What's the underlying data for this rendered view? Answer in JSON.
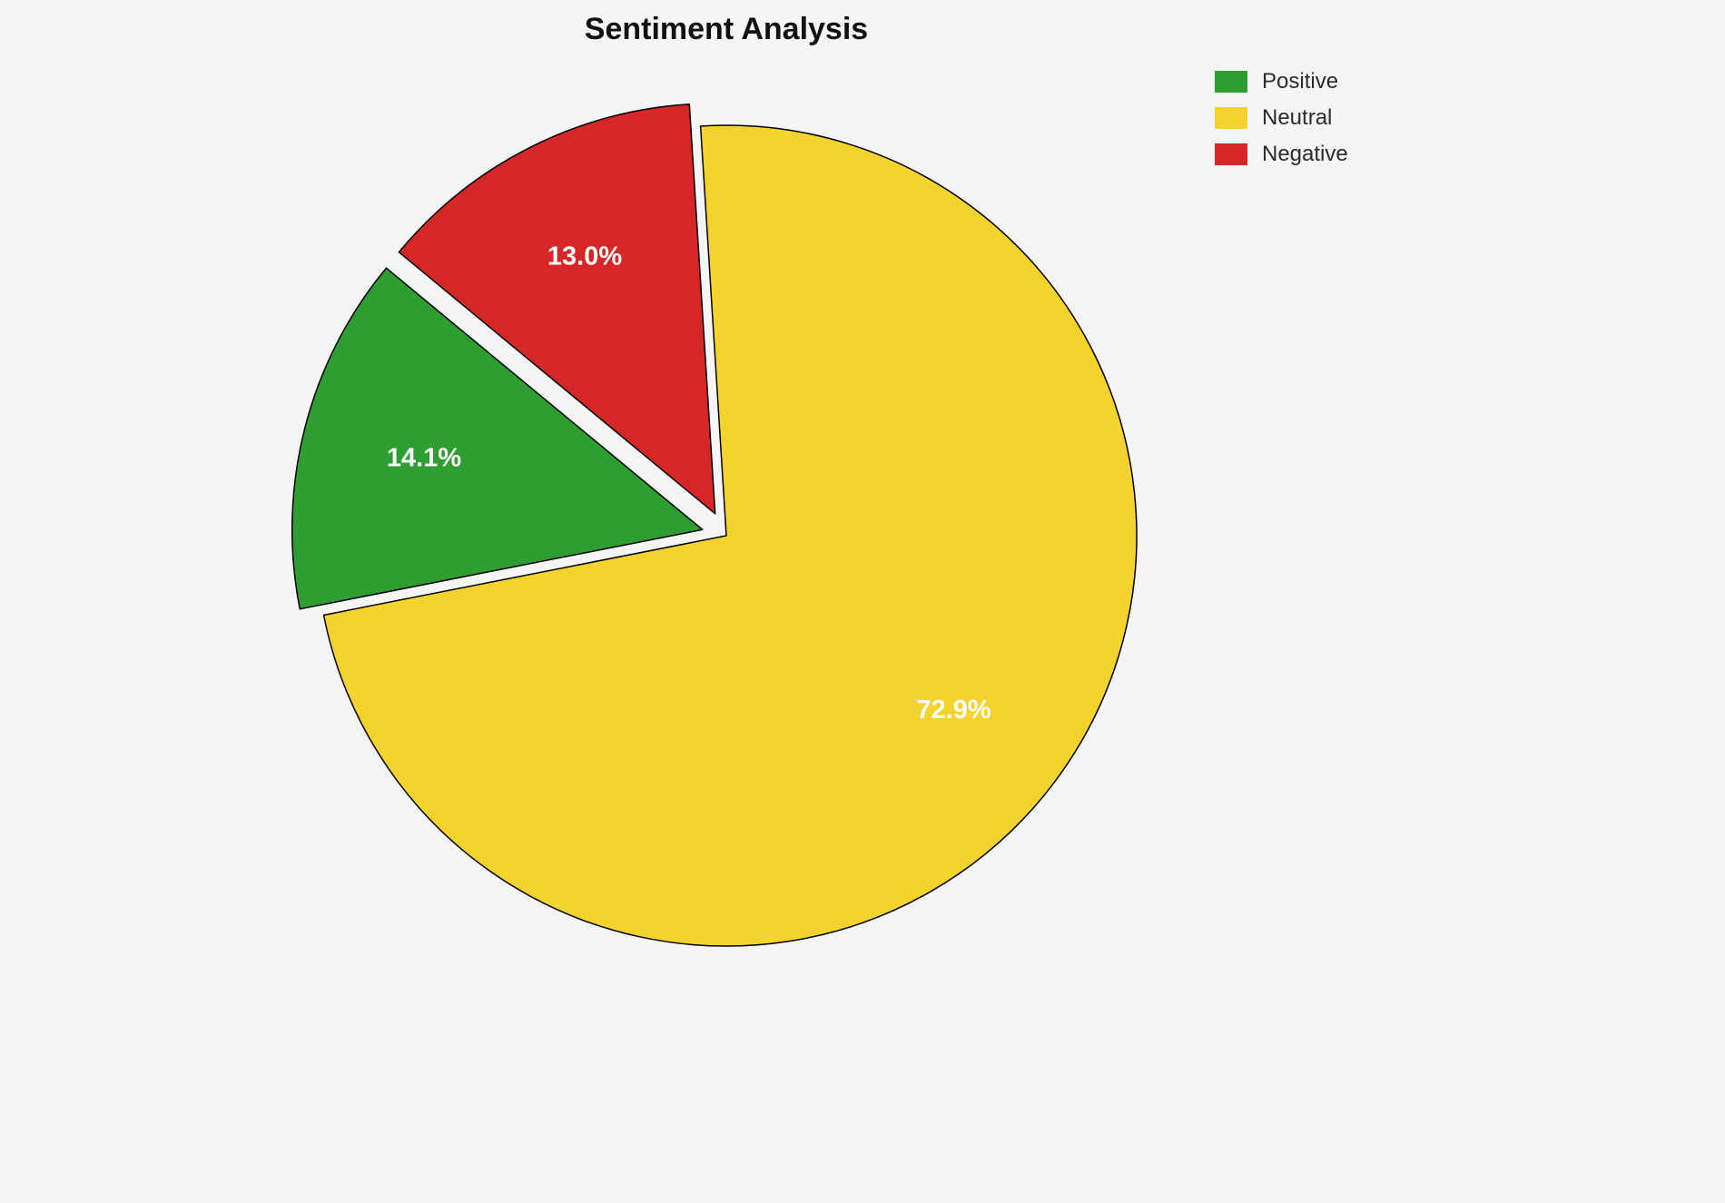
{
  "chart_data": {
    "type": "pie",
    "title": "Sentiment Analysis",
    "labels": [
      "Positive",
      "Neutral",
      "Negative"
    ],
    "values": [
      14.1,
      72.9,
      13.0
    ],
    "value_labels": [
      "14.1%",
      "72.9%",
      "13.0%"
    ],
    "colors": [
      "#2e9e33",
      "#f5d32f",
      "#d62728"
    ],
    "explode": [
      0.06,
      0,
      0.06
    ],
    "start_angle": 140.4,
    "counterclockwise": true,
    "legend_position": "upper right",
    "label_color": "#ffffff",
    "edge_color": "#000000",
    "background": "#f5f5f5"
  }
}
